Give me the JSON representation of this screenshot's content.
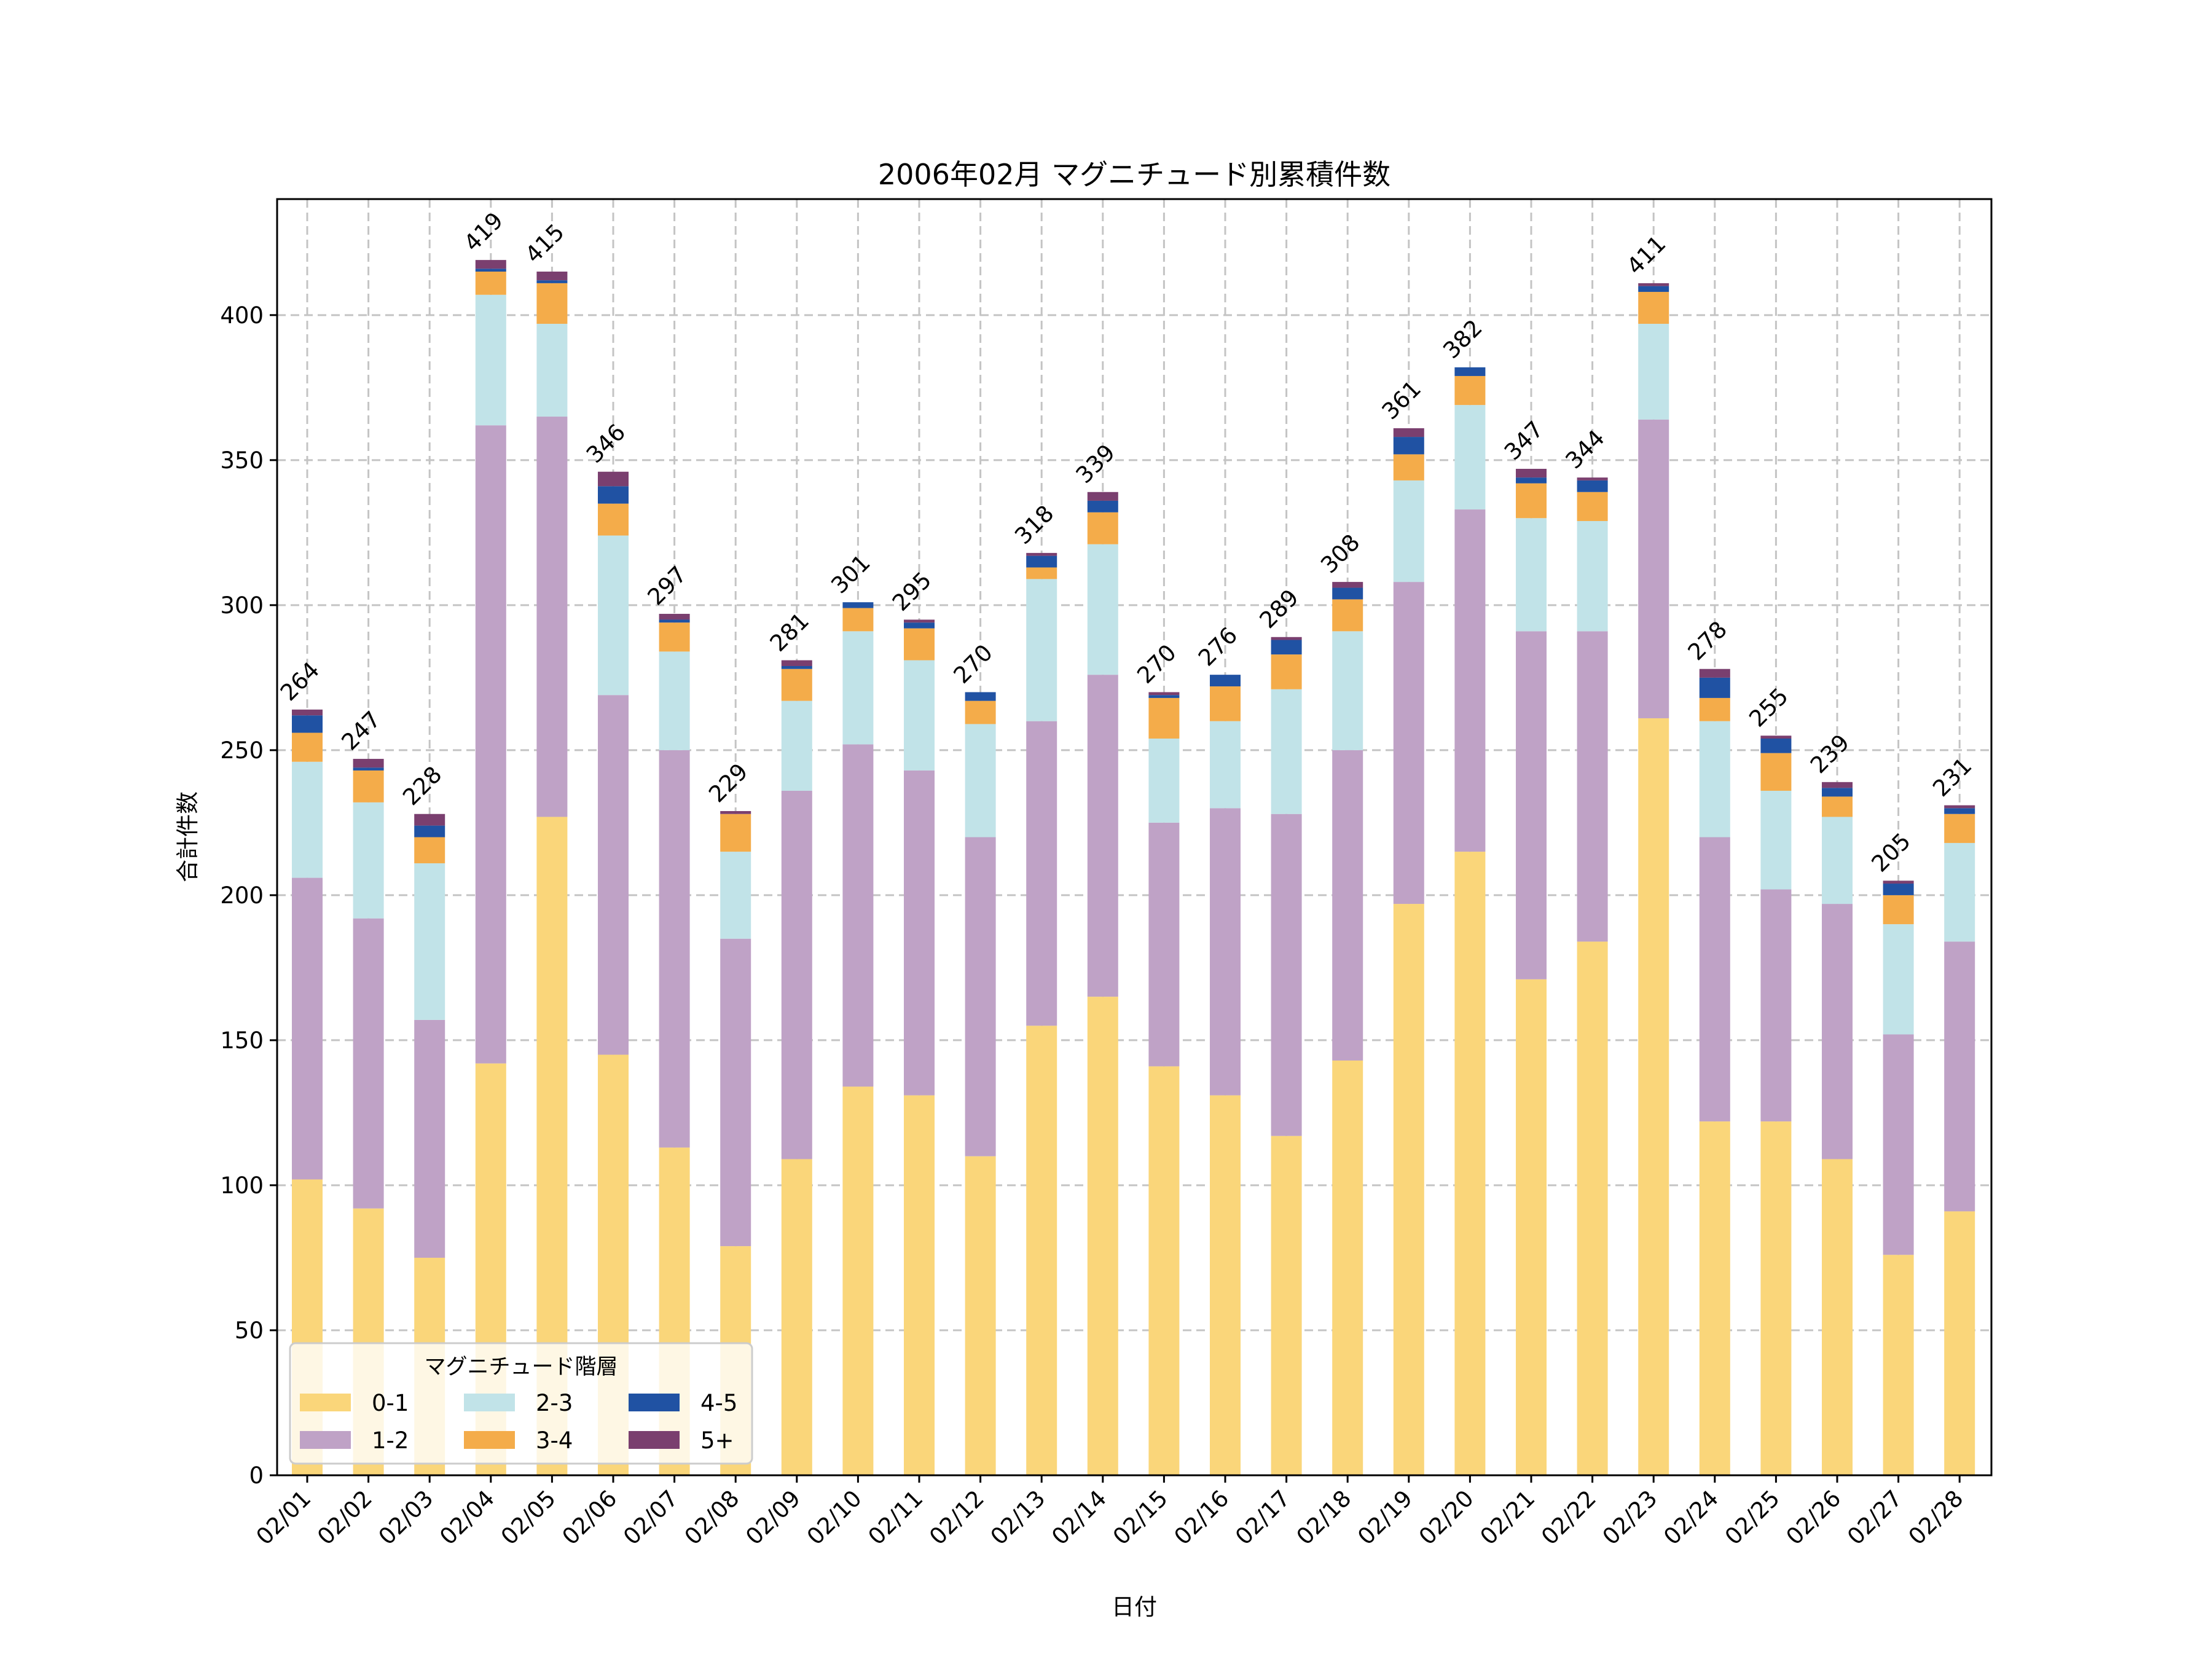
{
  "chart_data": {
    "type": "bar",
    "stacked": true,
    "title": "2006年02月 マグニチュード別累積件数",
    "xlabel": "日付",
    "ylabel": "合計件数",
    "ylim": [
      0,
      440
    ],
    "yticks": [
      0,
      50,
      100,
      150,
      200,
      250,
      300,
      350,
      400
    ],
    "grid": true,
    "legend": {
      "title": "マグニチュード階層",
      "placement": "bottom-left",
      "columns": 3
    },
    "categories": [
      "02/01",
      "02/02",
      "02/03",
      "02/04",
      "02/05",
      "02/06",
      "02/07",
      "02/08",
      "02/09",
      "02/10",
      "02/11",
      "02/12",
      "02/13",
      "02/14",
      "02/15",
      "02/16",
      "02/17",
      "02/18",
      "02/19",
      "02/20",
      "02/21",
      "02/22",
      "02/23",
      "02/24",
      "02/25",
      "02/26",
      "02/27",
      "02/28"
    ],
    "series": [
      {
        "name": "0-1",
        "color": "#FAD67A",
        "values": [
          102,
          92,
          75,
          142,
          227,
          145,
          113,
          79,
          109,
          134,
          131,
          110,
          155,
          165,
          141,
          131,
          117,
          143,
          197,
          215,
          171,
          184,
          261,
          122,
          122,
          109,
          76,
          91
        ]
      },
      {
        "name": "1-2",
        "color": "#BFA2C6",
        "values": [
          104,
          100,
          82,
          220,
          138,
          124,
          137,
          106,
          127,
          118,
          112,
          110,
          105,
          111,
          84,
          99,
          111,
          107,
          111,
          118,
          120,
          107,
          103,
          98,
          80,
          88,
          76,
          93
        ]
      },
      {
        "name": "2-3",
        "color": "#C1E3E8",
        "values": [
          40,
          40,
          54,
          45,
          32,
          55,
          34,
          30,
          31,
          39,
          38,
          39,
          49,
          45,
          29,
          30,
          43,
          41,
          35,
          36,
          39,
          38,
          33,
          40,
          34,
          30,
          38,
          34
        ]
      },
      {
        "name": "3-4",
        "color": "#F4AC4A",
        "values": [
          10,
          11,
          9,
          8,
          14,
          11,
          10,
          13,
          11,
          8,
          11,
          8,
          4,
          11,
          14,
          12,
          12,
          11,
          9,
          10,
          12,
          10,
          11,
          8,
          13,
          7,
          10,
          10
        ]
      },
      {
        "name": "4-5",
        "color": "#2052A3",
        "values": [
          6,
          1,
          4,
          1,
          1,
          6,
          1,
          0,
          1,
          2,
          2,
          3,
          4,
          4,
          1,
          4,
          5,
          4,
          6,
          3,
          2,
          4,
          2,
          7,
          5,
          3,
          4,
          2
        ]
      },
      {
        "name": "5+",
        "color": "#7A3F6F",
        "values": [
          2,
          3,
          4,
          3,
          3,
          5,
          2,
          1,
          2,
          0,
          1,
          0,
          1,
          3,
          1,
          0,
          1,
          2,
          3,
          0,
          3,
          1,
          1,
          3,
          1,
          2,
          1,
          1
        ]
      }
    ],
    "totals": [
      264,
      247,
      228,
      419,
      415,
      346,
      297,
      229,
      281,
      301,
      295,
      270,
      318,
      339,
      270,
      276,
      289,
      308,
      361,
      382,
      347,
      344,
      411,
      278,
      255,
      239,
      205,
      231
    ]
  }
}
